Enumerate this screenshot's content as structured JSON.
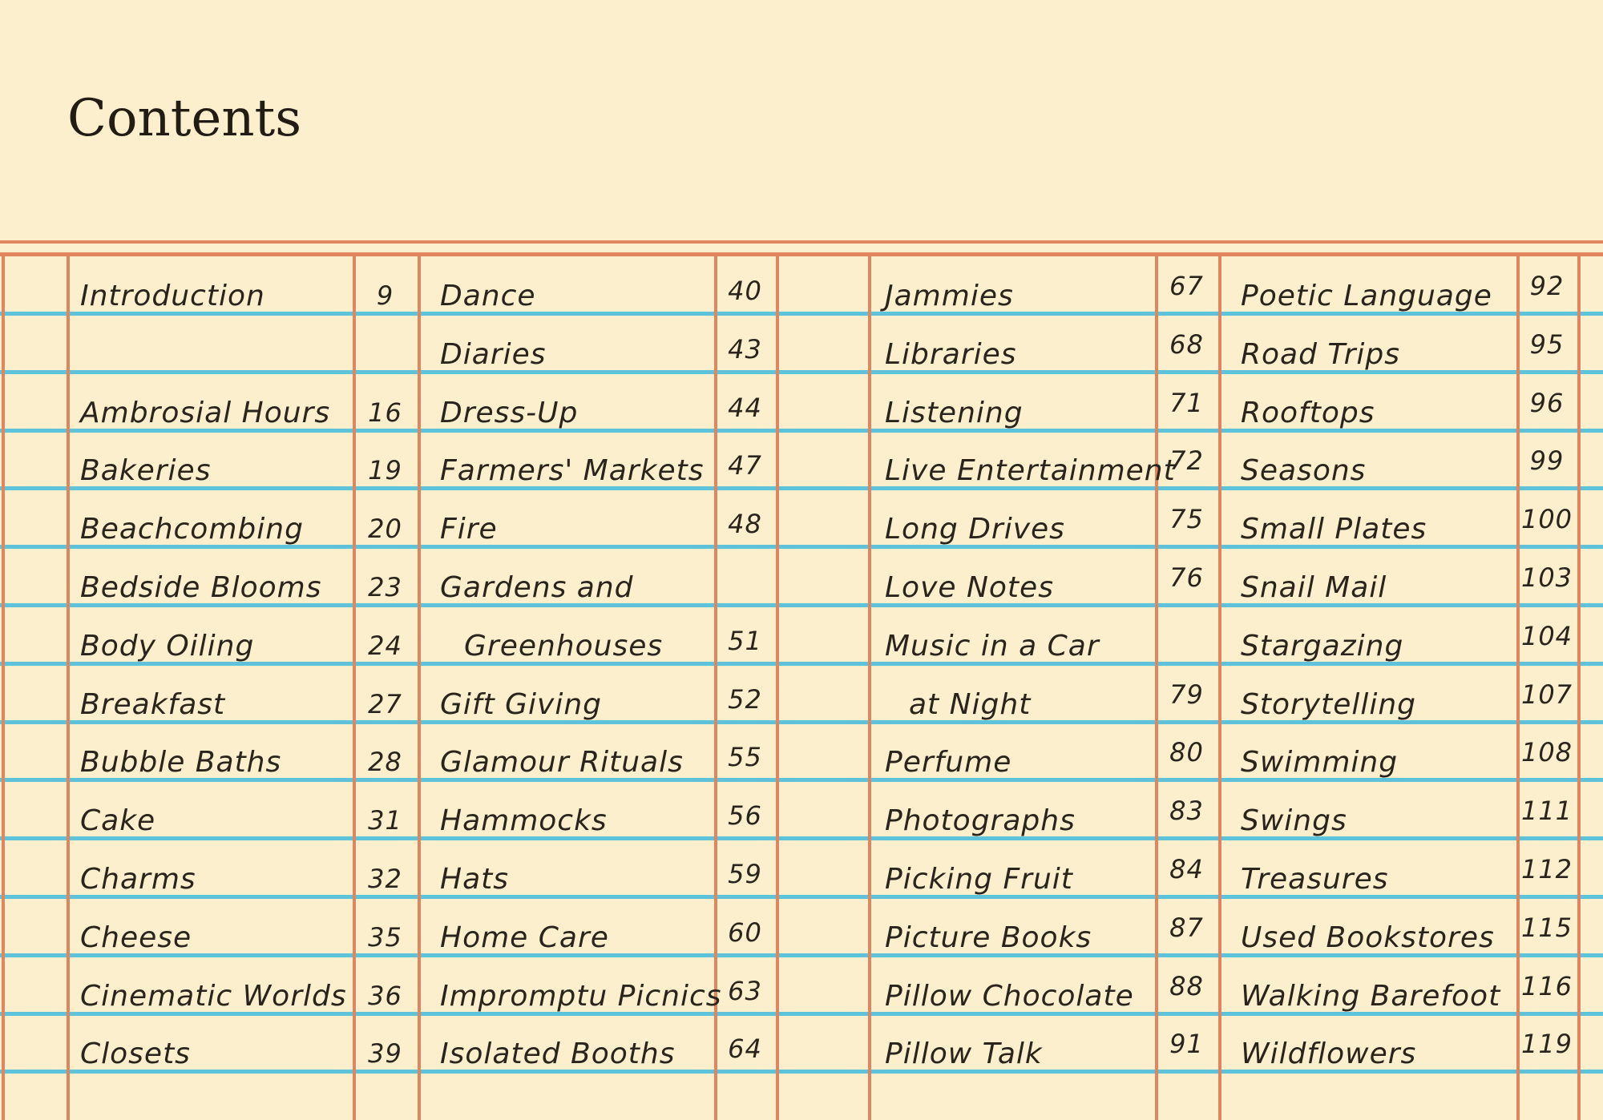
{
  "page": {
    "title": "Contents"
  },
  "colors": {
    "background": "#FBEFCD",
    "rule_orange": "#E0855D",
    "rule_blue": "#5FC2DB",
    "ink": "#2B241C",
    "title_ink": "#221C15"
  },
  "ledger": {
    "columns": [
      {
        "entries": [
          {
            "title": "Introduction",
            "page": "9",
            "row": 0
          },
          {
            "title": "Ambrosial Hours",
            "page": "16",
            "row": 2
          },
          {
            "title": "Bakeries",
            "page": "19",
            "row": 3
          },
          {
            "title": "Beachcombing",
            "page": "20",
            "row": 4
          },
          {
            "title": "Bedside Blooms",
            "page": "23",
            "row": 5
          },
          {
            "title": "Body Oiling",
            "page": "24",
            "row": 6
          },
          {
            "title": "Breakfast",
            "page": "27",
            "row": 7
          },
          {
            "title": "Bubble Baths",
            "page": "28",
            "row": 8
          },
          {
            "title": "Cake",
            "page": "31",
            "row": 9
          },
          {
            "title": "Charms",
            "page": "32",
            "row": 10
          },
          {
            "title": "Cheese",
            "page": "35",
            "row": 11
          },
          {
            "title": "Cinematic Worlds",
            "page": "36",
            "row": 12
          },
          {
            "title": "Closets",
            "page": "39",
            "row": 13
          }
        ]
      },
      {
        "entries": [
          {
            "title": "Dance",
            "page": "40",
            "row": 0
          },
          {
            "title": "Diaries",
            "page": "43",
            "row": 1
          },
          {
            "title": "Dress-Up",
            "page": "44",
            "row": 2
          },
          {
            "title": "Farmers' Markets",
            "page": "47",
            "row": 3
          },
          {
            "title": "Fire",
            "page": "48",
            "row": 4
          },
          {
            "title": "Gardens and",
            "page": "",
            "row": 5
          },
          {
            "title": "Greenhouses",
            "page": "51",
            "row": 6,
            "indent": true
          },
          {
            "title": "Gift Giving",
            "page": "52",
            "row": 7
          },
          {
            "title": "Glamour Rituals",
            "page": "55",
            "row": 8
          },
          {
            "title": "Hammocks",
            "page": "56",
            "row": 9
          },
          {
            "title": "Hats",
            "page": "59",
            "row": 10
          },
          {
            "title": "Home Care",
            "page": "60",
            "row": 11
          },
          {
            "title": "Impromptu Picnics",
            "page": "63",
            "row": 12
          },
          {
            "title": "Isolated Booths",
            "page": "64",
            "row": 13
          }
        ]
      },
      {
        "entries": [
          {
            "title": "Jammies",
            "page": "67",
            "row": 0
          },
          {
            "title": "Libraries",
            "page": "68",
            "row": 1
          },
          {
            "title": "Listening",
            "page": "71",
            "row": 2
          },
          {
            "title": "Live Entertainment",
            "page": "72",
            "row": 3
          },
          {
            "title": "Long Drives",
            "page": "75",
            "row": 4
          },
          {
            "title": "Love Notes",
            "page": "76",
            "row": 5
          },
          {
            "title": "Music in a Car",
            "page": "",
            "row": 6
          },
          {
            "title": "at Night",
            "page": "79",
            "row": 7,
            "indent": true
          },
          {
            "title": "Perfume",
            "page": "80",
            "row": 8
          },
          {
            "title": "Photographs",
            "page": "83",
            "row": 9
          },
          {
            "title": "Picking Fruit",
            "page": "84",
            "row": 10
          },
          {
            "title": "Picture Books",
            "page": "87",
            "row": 11
          },
          {
            "title": "Pillow Chocolate",
            "page": "88",
            "row": 12
          },
          {
            "title": "Pillow Talk",
            "page": "91",
            "row": 13
          }
        ]
      },
      {
        "entries": [
          {
            "title": "Poetic Language",
            "page": "92",
            "row": 0
          },
          {
            "title": "Road Trips",
            "page": "95",
            "row": 1
          },
          {
            "title": "Rooftops",
            "page": "96",
            "row": 2
          },
          {
            "title": "Seasons",
            "page": "99",
            "row": 3
          },
          {
            "title": "Small Plates",
            "page": "100",
            "row": 4
          },
          {
            "title": "Snail Mail",
            "page": "103",
            "row": 5
          },
          {
            "title": "Stargazing",
            "page": "104",
            "row": 6
          },
          {
            "title": "Storytelling",
            "page": "107",
            "row": 7
          },
          {
            "title": "Swimming",
            "page": "108",
            "row": 8
          },
          {
            "title": "Swings",
            "page": "111",
            "row": 9
          },
          {
            "title": "Treasures",
            "page": "112",
            "row": 10
          },
          {
            "title": "Used Bookstores",
            "page": "115",
            "row": 11
          },
          {
            "title": "Walking Barefoot",
            "page": "116",
            "row": 12
          },
          {
            "title": "Wildflowers",
            "page": "119",
            "row": 13
          }
        ]
      }
    ]
  }
}
